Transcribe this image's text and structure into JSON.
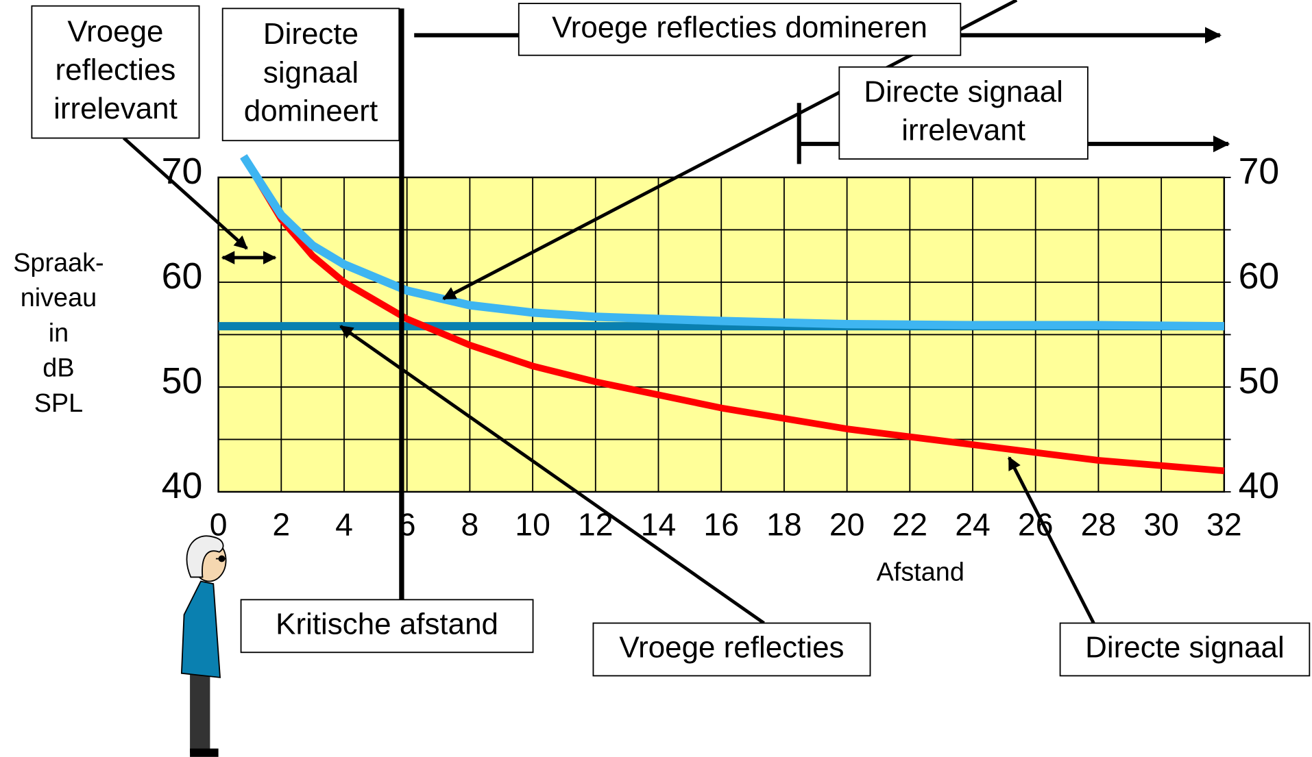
{
  "chart_data": {
    "type": "line",
    "x_label": "Afstand",
    "y_label_lines": [
      "Spraak-",
      "niveau",
      "in",
      "dB",
      "SPL"
    ],
    "x": [
      0,
      0.8,
      2,
      3,
      4,
      6,
      8,
      10,
      12,
      16,
      20,
      24,
      28,
      32
    ],
    "series": [
      {
        "color": "#ff0000",
        "values": [
          null,
          72,
          66,
          62.5,
          60,
          56.5,
          54,
          52,
          50.5,
          48,
          46,
          44.5,
          43,
          42
        ]
      },
      {
        "color": "#3eb5f1",
        "values": [
          null,
          72,
          66.4,
          63.5,
          61.7,
          59.2,
          57.8,
          57.1,
          56.7,
          56.3,
          56,
          55.9,
          55.9,
          55.8
        ]
      },
      {
        "color": "#0a80b0",
        "values": [
          55.8,
          55.8,
          55.8,
          55.8,
          55.8,
          55.8,
          55.8,
          55.8,
          55.8,
          55.8,
          55.8,
          55.8,
          55.8,
          55.8
        ]
      }
    ],
    "xlim": [
      0,
      32
    ],
    "xticks": [
      0,
      2,
      4,
      6,
      8,
      10,
      12,
      14,
      16,
      18,
      20,
      22,
      24,
      26,
      28,
      30,
      32
    ],
    "ylim": [
      40,
      70
    ],
    "yticks": [
      40,
      50,
      60,
      70
    ],
    "y_minor_grid": [
      45,
      55,
      65
    ],
    "grid": true,
    "plot_background": "#ffff99",
    "annotations": [
      {
        "lines": [
          "Vroege",
          "reflecties",
          "irrelevant"
        ]
      },
      {
        "lines": [
          "Directe",
          "signaal",
          "domineert"
        ]
      },
      {
        "lines": [
          "Vroege reflecties domineren"
        ]
      },
      {
        "lines": [
          "Directe signaal",
          "irrelevant"
        ]
      },
      {
        "lines": [
          "Kritische afstand"
        ]
      },
      {
        "lines": [
          "Vroege reflecties"
        ]
      },
      {
        "lines": [
          "Directe signaal"
        ]
      }
    ]
  }
}
